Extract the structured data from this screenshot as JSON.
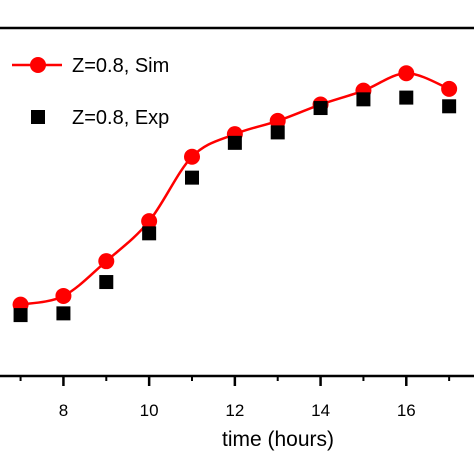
{
  "chart_data": {
    "type": "line",
    "xlabel": "time (hours)",
    "xlim": [
      6.8,
      17.3
    ],
    "ylim": [
      0,
      1
    ],
    "x_ticks": [
      8,
      10,
      12,
      14,
      16
    ],
    "grid": false,
    "legend_placement": "top-left",
    "series": [
      {
        "name": "Z=0.8, Sim",
        "style": "line-circle",
        "color": "#ff0000",
        "x": [
          7,
          8,
          9,
          10,
          11,
          12,
          13,
          14,
          15,
          16,
          17
        ],
        "y": [
          0.205,
          0.23,
          0.33,
          0.445,
          0.63,
          0.695,
          0.733,
          0.78,
          0.82,
          0.87,
          0.825
        ]
      },
      {
        "name": "Z=0.8, Exp",
        "style": "square",
        "color": "#000000",
        "x": [
          7,
          8,
          9,
          10,
          11,
          12,
          13,
          14,
          15,
          16,
          17
        ],
        "y": [
          0.175,
          0.18,
          0.27,
          0.41,
          0.57,
          0.67,
          0.7,
          0.77,
          0.795,
          0.8,
          0.775
        ]
      }
    ]
  }
}
